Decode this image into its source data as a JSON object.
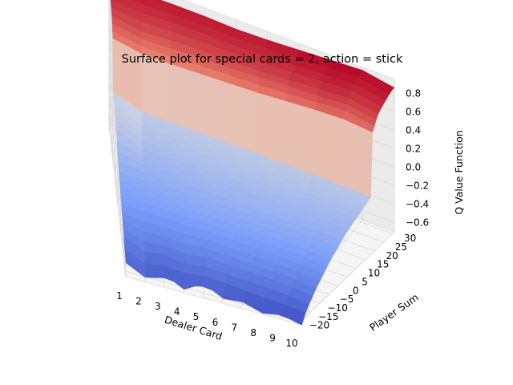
{
  "chart_data": {
    "type": "surface",
    "title": "Surface plot for special cards = 2, action = stick",
    "xlabel": "Dealer Card",
    "ylabel": "Player Sum",
    "zlabel": "Q Value Function",
    "x_ticks": [
      "1",
      "2",
      "3",
      "4",
      "5",
      "6",
      "7",
      "8",
      "9",
      "10"
    ],
    "y_ticks": [
      "−20",
      "−15",
      "−10",
      "−5",
      "0",
      "5",
      "10",
      "15",
      "20",
      "25",
      "30"
    ],
    "z_ticks": [
      "−0.6",
      "−0.4",
      "−0.2",
      "0.0",
      "0.2",
      "0.4",
      "0.6",
      "0.8"
    ],
    "xlim": [
      1,
      10
    ],
    "ylim": [
      -22,
      31
    ],
    "zlim": [
      -0.7,
      0.95
    ],
    "grid": true,
    "colormap": "coolwarm",
    "dealer_card": [
      1,
      2,
      3,
      4,
      5,
      6,
      7,
      8,
      9,
      10
    ],
    "player_sum": [
      -22,
      -20,
      -18,
      -16,
      -14,
      -12,
      -10,
      -8,
      -6,
      -4,
      -2,
      0,
      2,
      4,
      6,
      8,
      10,
      12,
      14,
      16,
      18,
      19,
      20,
      21,
      22,
      24,
      26,
      28,
      30,
      31
    ],
    "q_values": [
      [
        -0.55,
        -0.5,
        -0.52,
        -0.45,
        -0.43,
        -0.4,
        -0.38,
        -0.35,
        -0.33,
        -0.3,
        -0.28,
        -0.25,
        -0.2,
        -0.15,
        -0.1,
        -0.05,
        0.0,
        0.02,
        0.04,
        0.05,
        0.05,
        0.6,
        0.65,
        0.7,
        0.75,
        0.78,
        0.8,
        0.82,
        0.85,
        0.85
      ],
      [
        -0.65,
        -0.7,
        -0.62,
        -0.55,
        -0.5,
        -0.45,
        -0.4,
        -0.35,
        -0.32,
        -0.3,
        -0.28,
        -0.25,
        -0.22,
        -0.2,
        -0.18,
        -0.15,
        -0.12,
        -0.1,
        -0.08,
        -0.06,
        -0.05,
        0.55,
        0.6,
        0.65,
        0.7,
        0.75,
        0.78,
        0.82,
        0.85,
        0.85
      ],
      [
        -0.6,
        -0.62,
        -0.58,
        -0.52,
        -0.48,
        -0.44,
        -0.4,
        -0.36,
        -0.33,
        -0.3,
        -0.27,
        -0.24,
        -0.22,
        -0.19,
        -0.17,
        -0.15,
        -0.12,
        -0.1,
        -0.08,
        -0.06,
        -0.05,
        0.55,
        0.6,
        0.66,
        0.72,
        0.76,
        0.8,
        0.83,
        0.86,
        0.86
      ],
      [
        -0.62,
        -0.72,
        -0.6,
        -0.55,
        -0.5,
        -0.45,
        -0.4,
        -0.36,
        -0.32,
        -0.29,
        -0.26,
        -0.24,
        -0.21,
        -0.19,
        -0.16,
        -0.14,
        -0.12,
        -0.1,
        -0.08,
        -0.06,
        -0.05,
        0.56,
        0.62,
        0.68,
        0.73,
        0.77,
        0.81,
        0.84,
        0.86,
        0.86
      ],
      [
        -0.58,
        -0.6,
        -0.57,
        -0.52,
        -0.47,
        -0.43,
        -0.39,
        -0.35,
        -0.32,
        -0.29,
        -0.26,
        -0.23,
        -0.21,
        -0.18,
        -0.16,
        -0.14,
        -0.12,
        -0.1,
        -0.08,
        -0.06,
        -0.05,
        0.57,
        0.63,
        0.68,
        0.73,
        0.77,
        0.8,
        0.83,
        0.85,
        0.85
      ],
      [
        -0.6,
        -0.7,
        -0.58,
        -0.53,
        -0.48,
        -0.44,
        -0.4,
        -0.36,
        -0.33,
        -0.3,
        -0.27,
        -0.24,
        -0.22,
        -0.19,
        -0.17,
        -0.15,
        -0.12,
        -0.1,
        -0.08,
        -0.06,
        -0.05,
        0.58,
        0.64,
        0.7,
        0.74,
        0.78,
        0.81,
        0.84,
        0.86,
        0.86
      ],
      [
        -0.62,
        -0.68,
        -0.6,
        -0.54,
        -0.49,
        -0.45,
        -0.41,
        -0.37,
        -0.33,
        -0.3,
        -0.27,
        -0.25,
        -0.22,
        -0.2,
        -0.17,
        -0.15,
        -0.13,
        -0.11,
        -0.09,
        -0.07,
        -0.06,
        0.6,
        0.66,
        0.72,
        0.76,
        0.8,
        0.83,
        0.86,
        0.88,
        0.88
      ],
      [
        -0.64,
        -0.74,
        -0.62,
        -0.55,
        -0.5,
        -0.46,
        -0.42,
        -0.38,
        -0.34,
        -0.31,
        -0.28,
        -0.25,
        -0.23,
        -0.2,
        -0.18,
        -0.16,
        -0.14,
        -0.12,
        -0.1,
        -0.08,
        -0.06,
        0.62,
        0.68,
        0.73,
        0.78,
        0.82,
        0.85,
        0.88,
        0.9,
        0.9
      ],
      [
        -0.66,
        -0.7,
        -0.63,
        -0.57,
        -0.52,
        -0.47,
        -0.43,
        -0.39,
        -0.35,
        -0.32,
        -0.29,
        -0.26,
        -0.23,
        -0.21,
        -0.19,
        -0.17,
        -0.15,
        -0.13,
        -0.11,
        -0.09,
        -0.07,
        0.63,
        0.7,
        0.75,
        0.8,
        0.84,
        0.87,
        0.9,
        0.92,
        0.92
      ],
      [
        -0.68,
        -0.75,
        -0.66,
        -0.6,
        -0.55,
        -0.5,
        -0.46,
        -0.42,
        -0.38,
        -0.34,
        -0.31,
        -0.28,
        -0.25,
        -0.22,
        -0.2,
        -0.18,
        -0.16,
        -0.14,
        -0.12,
        -0.1,
        -0.08,
        0.6,
        0.65,
        0.7,
        0.74,
        0.78,
        0.81,
        0.84,
        0.86,
        0.86
      ]
    ]
  }
}
